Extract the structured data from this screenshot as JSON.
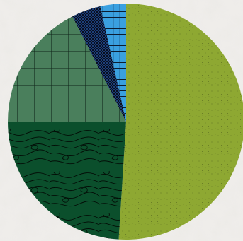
{
  "chart_data": {
    "type": "pie",
    "title": "",
    "slices": [
      {
        "value": 51.0,
        "color": "#8ea832",
        "pattern": "dots"
      },
      {
        "value": 24.0,
        "color": "#0b4f2c",
        "pattern": "contour"
      },
      {
        "value": 17.5,
        "color": "#4a7f5c",
        "pattern": "grid"
      },
      {
        "value": 4.0,
        "color": "#1c3f7a",
        "pattern": "checker"
      },
      {
        "value": 3.5,
        "color": "#3aa0e0",
        "pattern": "hlines"
      }
    ],
    "legend": "none",
    "labels_shown": false
  },
  "background": {
    "color": "#efedea",
    "texture": "marble"
  }
}
